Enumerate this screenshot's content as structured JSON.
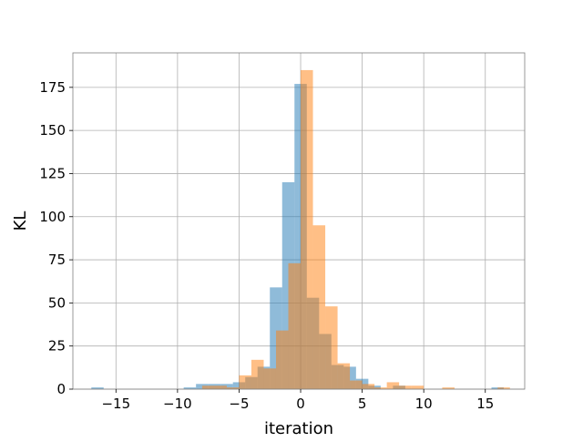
{
  "chart_data": {
    "type": "bar",
    "subtype": "overlapping-histogram",
    "title": "",
    "xlabel": "iteration",
    "ylabel": "KL",
    "xlim": [
      -18.5,
      18.2
    ],
    "ylim": [
      0,
      195
    ],
    "x_ticks": [
      -15,
      -10,
      -5,
      0,
      5,
      10,
      15
    ],
    "x_tick_labels": [
      "−15",
      "−10",
      "−5",
      "0",
      "5",
      "10",
      "15"
    ],
    "y_ticks": [
      0,
      25,
      50,
      75,
      100,
      125,
      150,
      175
    ],
    "y_tick_labels": [
      "0",
      "25",
      "50",
      "75",
      "100",
      "125",
      "150",
      "175"
    ],
    "grid": true,
    "legend": "none",
    "series": [
      {
        "color": "#1f77b4",
        "opacity": 0.5,
        "bins": [
          {
            "x0": -17.0,
            "x1": -16.0,
            "count": 1
          },
          {
            "x0": -9.5,
            "x1": -8.5,
            "count": 1
          },
          {
            "x0": -8.5,
            "x1": -7.5,
            "count": 3
          },
          {
            "x0": -7.5,
            "x1": -6.5,
            "count": 3
          },
          {
            "x0": -6.5,
            "x1": -5.5,
            "count": 3
          },
          {
            "x0": -5.5,
            "x1": -4.5,
            "count": 4
          },
          {
            "x0": -4.5,
            "x1": -3.5,
            "count": 7
          },
          {
            "x0": -3.5,
            "x1": -2.5,
            "count": 13
          },
          {
            "x0": -2.5,
            "x1": -1.5,
            "count": 59
          },
          {
            "x0": -1.5,
            "x1": -0.5,
            "count": 120
          },
          {
            "x0": -0.5,
            "x1": 0.5,
            "count": 177
          },
          {
            "x0": 0.5,
            "x1": 1.5,
            "count": 53
          },
          {
            "x0": 1.5,
            "x1": 2.5,
            "count": 32
          },
          {
            "x0": 2.5,
            "x1": 3.5,
            "count": 14
          },
          {
            "x0": 3.5,
            "x1": 4.5,
            "count": 13
          },
          {
            "x0": 4.5,
            "x1": 5.5,
            "count": 6
          },
          {
            "x0": 5.5,
            "x1": 6.5,
            "count": 2
          },
          {
            "x0": 7.5,
            "x1": 8.5,
            "count": 2
          },
          {
            "x0": 15.5,
            "x1": 16.5,
            "count": 1
          }
        ]
      },
      {
        "color": "#ff7f0e",
        "opacity": 0.5,
        "bins": [
          {
            "x0": -8.0,
            "x1": -7.0,
            "count": 2
          },
          {
            "x0": -7.0,
            "x1": -6.0,
            "count": 2
          },
          {
            "x0": -6.0,
            "x1": -5.0,
            "count": 1
          },
          {
            "x0": -5.0,
            "x1": -4.0,
            "count": 8
          },
          {
            "x0": -4.0,
            "x1": -3.0,
            "count": 17
          },
          {
            "x0": -3.0,
            "x1": -2.0,
            "count": 12
          },
          {
            "x0": -2.0,
            "x1": -1.0,
            "count": 34
          },
          {
            "x0": -1.0,
            "x1": 0.0,
            "count": 73
          },
          {
            "x0": 0.0,
            "x1": 1.0,
            "count": 185
          },
          {
            "x0": 1.0,
            "x1": 2.0,
            "count": 95
          },
          {
            "x0": 2.0,
            "x1": 3.0,
            "count": 48
          },
          {
            "x0": 3.0,
            "x1": 4.0,
            "count": 15
          },
          {
            "x0": 4.0,
            "x1": 5.0,
            "count": 5
          },
          {
            "x0": 5.0,
            "x1": 6.0,
            "count": 3
          },
          {
            "x0": 6.0,
            "x1": 7.0,
            "count": 1
          },
          {
            "x0": 7.0,
            "x1": 8.0,
            "count": 4
          },
          {
            "x0": 8.0,
            "x1": 9.0,
            "count": 2
          },
          {
            "x0": 9.0,
            "x1": 10.0,
            "count": 2
          },
          {
            "x0": 11.5,
            "x1": 12.5,
            "count": 1
          },
          {
            "x0": 16.0,
            "x1": 17.0,
            "count": 1
          }
        ]
      }
    ]
  }
}
